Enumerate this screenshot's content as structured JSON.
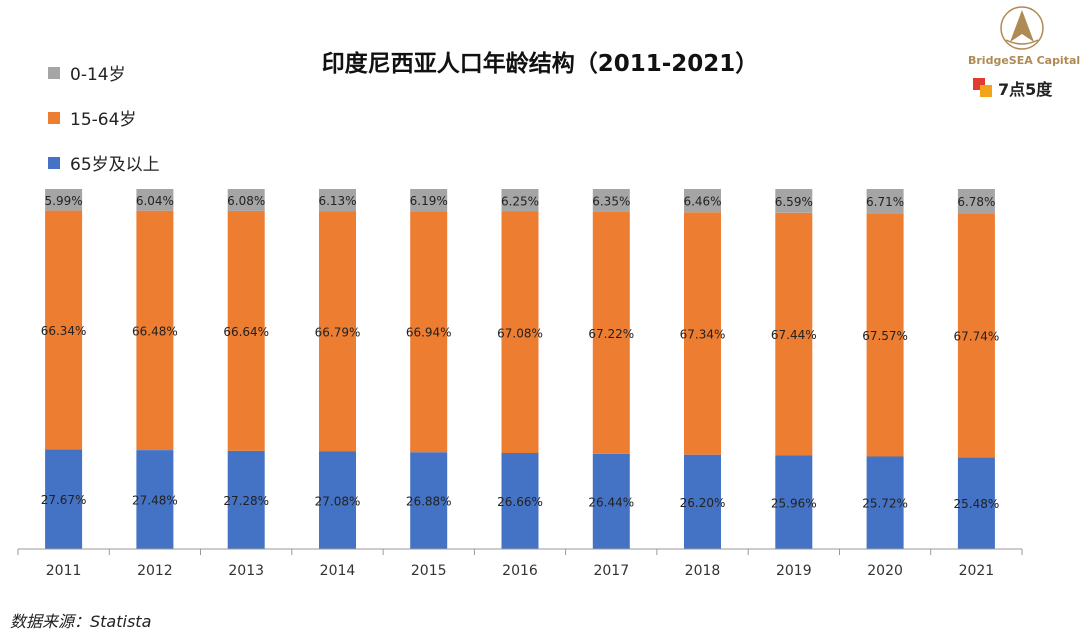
{
  "title": "印度尼西亚人口年龄结构（2011-2021）",
  "source": "数据来源：Statista",
  "brand": {
    "logo_text": "BridgeSEA Capital",
    "secondary_text": "7点5度"
  },
  "colors": {
    "age_0_14": "#a5a5a5",
    "age_15_64": "#ed7d31",
    "age_65_plus": "#4472c4",
    "logo_gold": "#b08a55"
  },
  "chart_data": {
    "type": "bar",
    "stacked": true,
    "categories": [
      "2011",
      "2012",
      "2013",
      "2014",
      "2015",
      "2016",
      "2017",
      "2018",
      "2019",
      "2020",
      "2021"
    ],
    "series": [
      {
        "name": "65岁及以上",
        "values": [
          27.67,
          27.48,
          27.28,
          27.08,
          26.88,
          26.66,
          26.44,
          26.2,
          25.96,
          25.72,
          25.48
        ],
        "labels": [
          "27.67%",
          "27.48%",
          "27.28%",
          "27.08%",
          "26.88%",
          "26.66%",
          "26.44%",
          "26.20%",
          "25.96%",
          "25.72%",
          "25.48%"
        ]
      },
      {
        "name": "15-64岁",
        "values": [
          66.34,
          66.48,
          66.64,
          66.79,
          66.94,
          67.08,
          67.22,
          67.34,
          67.44,
          67.57,
          67.74
        ],
        "labels": [
          "66.34%",
          "66.48%",
          "66.64%",
          "66.79%",
          "66.94%",
          "67.08%",
          "67.22%",
          "67.34%",
          "67.44%",
          "67.57%",
          "67.74%"
        ]
      },
      {
        "name": "0-14岁",
        "values": [
          5.99,
          6.04,
          6.08,
          6.13,
          6.19,
          6.25,
          6.35,
          6.46,
          6.59,
          6.71,
          6.78
        ],
        "labels": [
          "5.99%",
          "6.04%",
          "6.08%",
          "6.13%",
          "6.19%",
          "6.25%",
          "6.35%",
          "6.46%",
          "6.59%",
          "6.71%",
          "6.78%"
        ]
      }
    ],
    "legend_order": [
      "0-14岁",
      "15-64岁",
      "65岁及以上"
    ],
    "legend_position": "top-left",
    "grid": false,
    "ylim": [
      0,
      100
    ]
  }
}
